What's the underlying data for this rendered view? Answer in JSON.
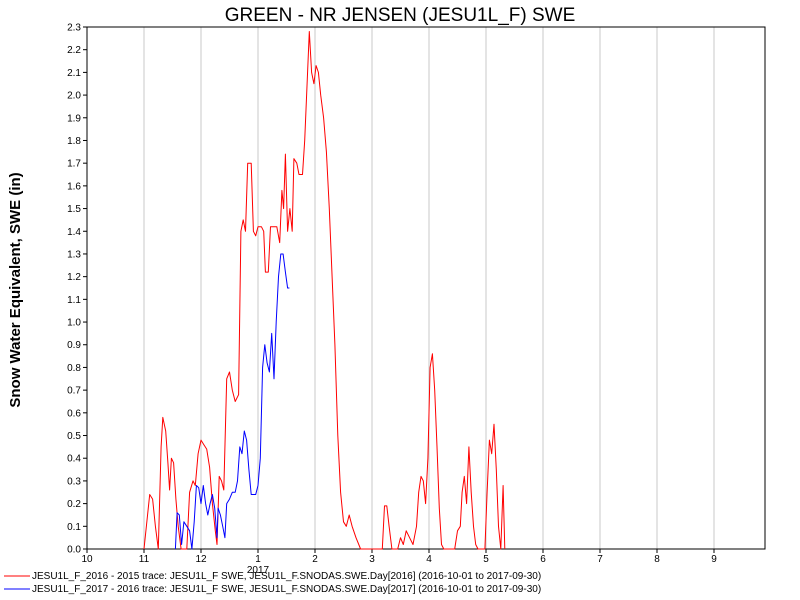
{
  "chart_data": {
    "type": "line",
    "title": "GREEN - NR JENSEN (JESU1L_F) SWE",
    "ylabel": "Snow Water Equivalent, SWE (in)",
    "xlabel": "",
    "x_tick_labels": [
      "10",
      "11",
      "12",
      "1",
      "2",
      "3",
      "4",
      "5",
      "6",
      "7",
      "8",
      "9"
    ],
    "year_label": "2017",
    "ylim": [
      0,
      2.3
    ],
    "y_ticks": [
      "0.0",
      "0.1",
      "0.2",
      "0.3",
      "0.4",
      "0.5",
      "0.6",
      "0.7",
      "0.8",
      "0.9",
      "1.0",
      "1.1",
      "1.2",
      "1.3",
      "1.4",
      "1.5",
      "1.6",
      "1.7",
      "1.8",
      "1.9",
      "2.0",
      "2.1",
      "2.2",
      "2.3"
    ],
    "grid": "vertical",
    "legend_position": "bottom-left",
    "series": [
      {
        "name": "JESU1L_F_2016 - 2015 trace: JESU1L_F SWE, JESU1L_F.SNODAS.SWE.Day[2016] (2016-10-01 to 2017-09-30)",
        "color": "#ff0000",
        "points": [
          [
            1.0,
            0.0
          ],
          [
            1.1,
            0.24
          ],
          [
            1.15,
            0.22
          ],
          [
            1.2,
            0.1
          ],
          [
            1.25,
            0.0
          ],
          [
            1.3,
            0.45
          ],
          [
            1.33,
            0.58
          ],
          [
            1.38,
            0.52
          ],
          [
            1.42,
            0.38
          ],
          [
            1.45,
            0.26
          ],
          [
            1.48,
            0.4
          ],
          [
            1.52,
            0.38
          ],
          [
            1.56,
            0.22
          ],
          [
            1.6,
            0.1
          ],
          [
            1.65,
            0.0
          ],
          [
            1.75,
            0.0
          ],
          [
            1.8,
            0.25
          ],
          [
            1.86,
            0.3
          ],
          [
            1.9,
            0.28
          ],
          [
            1.95,
            0.42
          ],
          [
            2.0,
            0.48
          ],
          [
            2.05,
            0.46
          ],
          [
            2.1,
            0.44
          ],
          [
            2.15,
            0.36
          ],
          [
            2.2,
            0.2
          ],
          [
            2.25,
            0.08
          ],
          [
            2.28,
            0.02
          ],
          [
            2.32,
            0.32
          ],
          [
            2.36,
            0.3
          ],
          [
            2.4,
            0.26
          ],
          [
            2.45,
            0.75
          ],
          [
            2.5,
            0.78
          ],
          [
            2.55,
            0.7
          ],
          [
            2.6,
            0.65
          ],
          [
            2.66,
            0.68
          ],
          [
            2.7,
            1.4
          ],
          [
            2.74,
            1.45
          ],
          [
            2.78,
            1.4
          ],
          [
            2.82,
            1.7
          ],
          [
            2.88,
            1.7
          ],
          [
            2.92,
            1.4
          ],
          [
            2.96,
            1.38
          ],
          [
            3.0,
            1.42
          ],
          [
            3.06,
            1.42
          ],
          [
            3.1,
            1.4
          ],
          [
            3.13,
            1.22
          ],
          [
            3.18,
            1.22
          ],
          [
            3.22,
            1.42
          ],
          [
            3.28,
            1.42
          ],
          [
            3.33,
            1.42
          ],
          [
            3.38,
            1.35
          ],
          [
            3.42,
            1.58
          ],
          [
            3.45,
            1.5
          ],
          [
            3.48,
            1.74
          ],
          [
            3.52,
            1.4
          ],
          [
            3.56,
            1.5
          ],
          [
            3.6,
            1.4
          ],
          [
            3.63,
            1.72
          ],
          [
            3.68,
            1.7
          ],
          [
            3.72,
            1.65
          ],
          [
            3.78,
            1.65
          ],
          [
            3.82,
            1.8
          ],
          [
            3.9,
            2.28
          ],
          [
            3.94,
            2.1
          ],
          [
            3.98,
            2.05
          ],
          [
            4.02,
            2.13
          ],
          [
            4.06,
            2.1
          ],
          [
            4.1,
            2.0
          ],
          [
            4.15,
            1.9
          ],
          [
            4.2,
            1.75
          ],
          [
            4.25,
            1.5
          ],
          [
            4.3,
            1.2
          ],
          [
            4.35,
            0.9
          ],
          [
            4.4,
            0.5
          ],
          [
            4.45,
            0.25
          ],
          [
            4.5,
            0.12
          ],
          [
            4.55,
            0.1
          ],
          [
            4.6,
            0.15
          ],
          [
            4.65,
            0.1
          ],
          [
            4.72,
            0.05
          ],
          [
            4.8,
            0.0
          ],
          [
            5.18,
            0.0
          ],
          [
            5.22,
            0.19
          ],
          [
            5.26,
            0.19
          ],
          [
            5.3,
            0.1
          ],
          [
            5.35,
            0.0
          ],
          [
            5.45,
            0.0
          ],
          [
            5.5,
            0.05
          ],
          [
            5.55,
            0.02
          ],
          [
            5.6,
            0.08
          ],
          [
            5.66,
            0.05
          ],
          [
            5.72,
            0.02
          ],
          [
            5.78,
            0.1
          ],
          [
            5.82,
            0.25
          ],
          [
            5.86,
            0.32
          ],
          [
            5.9,
            0.3
          ],
          [
            5.94,
            0.2
          ],
          [
            5.98,
            0.4
          ],
          [
            6.02,
            0.8
          ],
          [
            6.06,
            0.86
          ],
          [
            6.1,
            0.7
          ],
          [
            6.14,
            0.45
          ],
          [
            6.18,
            0.18
          ],
          [
            6.22,
            0.02
          ],
          [
            6.26,
            0.0
          ],
          [
            6.45,
            0.0
          ],
          [
            6.5,
            0.08
          ],
          [
            6.55,
            0.1
          ],
          [
            6.58,
            0.25
          ],
          [
            6.62,
            0.32
          ],
          [
            6.66,
            0.2
          ],
          [
            6.7,
            0.45
          ],
          [
            6.74,
            0.25
          ],
          [
            6.78,
            0.1
          ],
          [
            6.82,
            0.02
          ],
          [
            6.86,
            0.0
          ],
          [
            6.98,
            0.0
          ],
          [
            7.02,
            0.25
          ],
          [
            7.06,
            0.48
          ],
          [
            7.1,
            0.42
          ],
          [
            7.14,
            0.55
          ],
          [
            7.18,
            0.35
          ],
          [
            7.22,
            0.1
          ],
          [
            7.26,
            0.0
          ],
          [
            7.3,
            0.28
          ],
          [
            7.33,
            0.0
          ]
        ]
      },
      {
        "name": "JESU1L_F_2017 - 2016 trace: JESU1L_F SWE, JESU1L_F.SNODAS.SWE.Day[2017] (2016-10-01 to 2017-09-30)",
        "color": "#0000ff",
        "points": [
          [
            1.55,
            0.0
          ],
          [
            1.58,
            0.16
          ],
          [
            1.62,
            0.15
          ],
          [
            1.66,
            0.02
          ],
          [
            1.7,
            0.12
          ],
          [
            1.75,
            0.1
          ],
          [
            1.8,
            0.08
          ],
          [
            1.84,
            0.0
          ],
          [
            1.88,
            0.12
          ],
          [
            1.92,
            0.28
          ],
          [
            1.96,
            0.27
          ],
          [
            2.0,
            0.2
          ],
          [
            2.04,
            0.28
          ],
          [
            2.08,
            0.2
          ],
          [
            2.12,
            0.15
          ],
          [
            2.16,
            0.2
          ],
          [
            2.2,
            0.24
          ],
          [
            2.24,
            0.18
          ],
          [
            2.28,
            0.05
          ],
          [
            2.3,
            0.18
          ],
          [
            2.34,
            0.15
          ],
          [
            2.38,
            0.1
          ],
          [
            2.42,
            0.05
          ],
          [
            2.45,
            0.2
          ],
          [
            2.5,
            0.22
          ],
          [
            2.55,
            0.25
          ],
          [
            2.6,
            0.25
          ],
          [
            2.64,
            0.3
          ],
          [
            2.68,
            0.45
          ],
          [
            2.72,
            0.42
          ],
          [
            2.76,
            0.52
          ],
          [
            2.8,
            0.48
          ],
          [
            2.84,
            0.35
          ],
          [
            2.88,
            0.24
          ],
          [
            2.92,
            0.24
          ],
          [
            2.96,
            0.24
          ],
          [
            3.0,
            0.28
          ],
          [
            3.04,
            0.4
          ],
          [
            3.08,
            0.8
          ],
          [
            3.12,
            0.9
          ],
          [
            3.16,
            0.82
          ],
          [
            3.2,
            0.78
          ],
          [
            3.24,
            0.95
          ],
          [
            3.28,
            0.75
          ],
          [
            3.32,
            1.0
          ],
          [
            3.36,
            1.2
          ],
          [
            3.4,
            1.3
          ],
          [
            3.44,
            1.3
          ],
          [
            3.48,
            1.22
          ],
          [
            3.52,
            1.15
          ],
          [
            3.55,
            1.15
          ]
        ]
      }
    ]
  }
}
